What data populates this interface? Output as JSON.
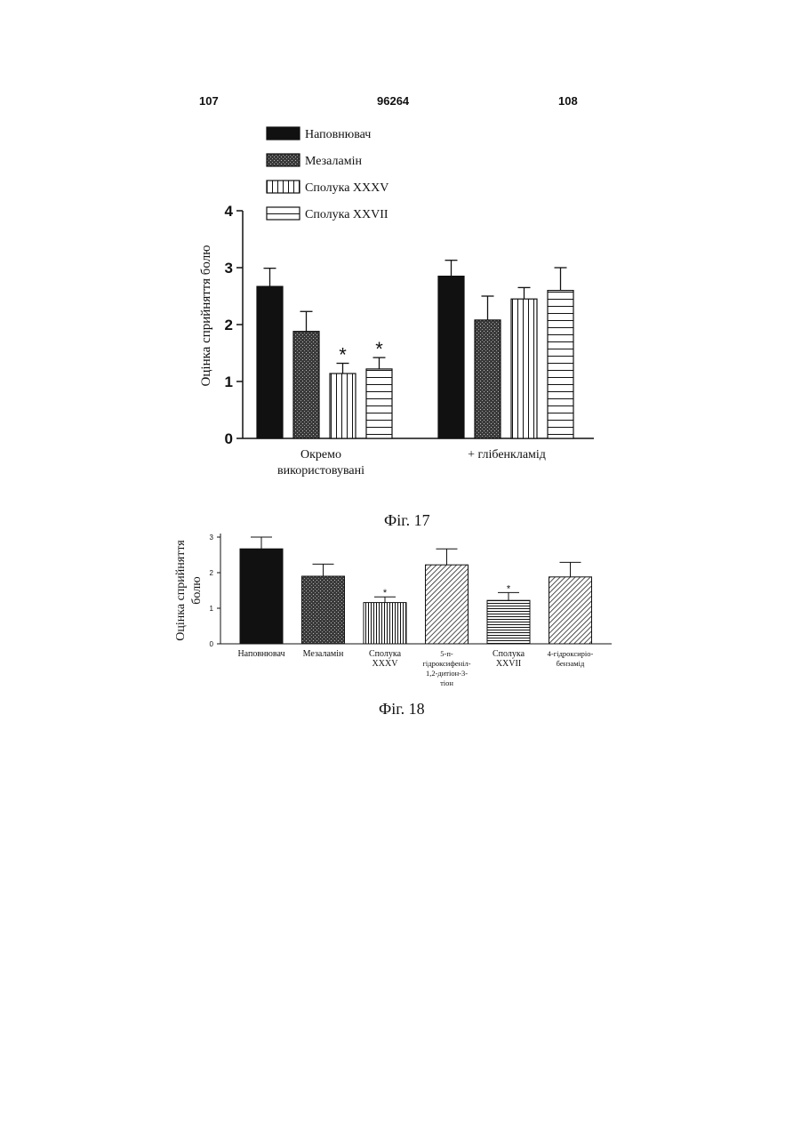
{
  "header": {
    "page_left": "107",
    "patent_number": "96264",
    "page_right": "108"
  },
  "colors": {
    "ink": "#111111",
    "paper": "#ffffff"
  },
  "patterns": {
    "Наповнювач": "solid",
    "Мезаламін": "stipple",
    "Сполука XXXV": "vertical-lines",
    "Сполука XXVII": "horizontal-lines",
    "5-п-гідроксифеніл-1,2-дитіон-3-тіон": "diagonal-lines",
    "4-гідрокситіо-бензамід": "diagonal-lines"
  },
  "chart_data": [
    {
      "type": "bar",
      "caption": "Фіг. 17",
      "ylabel": "Оцінка сприйняття болю",
      "ylim": [
        0,
        4
      ],
      "yticks": [
        0,
        1,
        2,
        3,
        4
      ],
      "legend_position": "top-left",
      "legend": [
        "Наповнювач",
        "Мезаламін",
        "Сполука XXXV",
        "Сполука XXVII"
      ],
      "groups": [
        "Окремо використовувані",
        "+ глібенкламід"
      ],
      "group_label_lines": [
        [
          "Окремо",
          "використовувані"
        ],
        [
          "+ глібенкламід"
        ]
      ],
      "series": [
        {
          "name": "Наповнювач",
          "values": [
            2.67,
            2.85
          ],
          "errors": [
            0.32,
            0.28
          ],
          "significant": [
            false,
            false
          ]
        },
        {
          "name": "Мезаламін",
          "values": [
            1.88,
            2.08
          ],
          "errors": [
            0.35,
            0.42
          ],
          "significant": [
            false,
            false
          ]
        },
        {
          "name": "Сполука XXXV",
          "values": [
            1.14,
            2.45
          ],
          "errors": [
            0.18,
            0.2
          ],
          "significant": [
            true,
            false
          ]
        },
        {
          "name": "Сполука XXVII",
          "values": [
            1.22,
            2.6
          ],
          "errors": [
            0.2,
            0.4
          ],
          "significant": [
            true,
            false
          ]
        }
      ]
    },
    {
      "type": "bar",
      "caption": "Фіг. 18",
      "ylabel": [
        "Оцінка сприйняття",
        "болю"
      ],
      "ylim": [
        0,
        3
      ],
      "yticks": [
        0,
        1,
        2,
        3
      ],
      "categories": [
        "Наповнювач",
        "Мезаламін",
        "Сполука XXXV",
        "5-п-гідроксифеніл-1,2-дитіон-3-тіон",
        "Сполука XXVII",
        "4-гідрокситіо-бензамід"
      ],
      "category_label_lines": [
        [
          "Наповнювач"
        ],
        [
          "Мезаламін"
        ],
        [
          "Сполука",
          "XXXV"
        ],
        [
          "5-п-",
          "гідроксифеніл-",
          "1,2-дитіон-3-",
          "тіон"
        ],
        [
          "Сполука",
          "XXVII"
        ],
        [
          "4-гідроксиріо-",
          "бензамід"
        ]
      ],
      "values": [
        2.67,
        1.9,
        1.16,
        2.22,
        1.22,
        1.88
      ],
      "errors": [
        0.33,
        0.34,
        0.16,
        0.45,
        0.22,
        0.41
      ],
      "significant": [
        false,
        false,
        true,
        false,
        true,
        false
      ]
    }
  ]
}
